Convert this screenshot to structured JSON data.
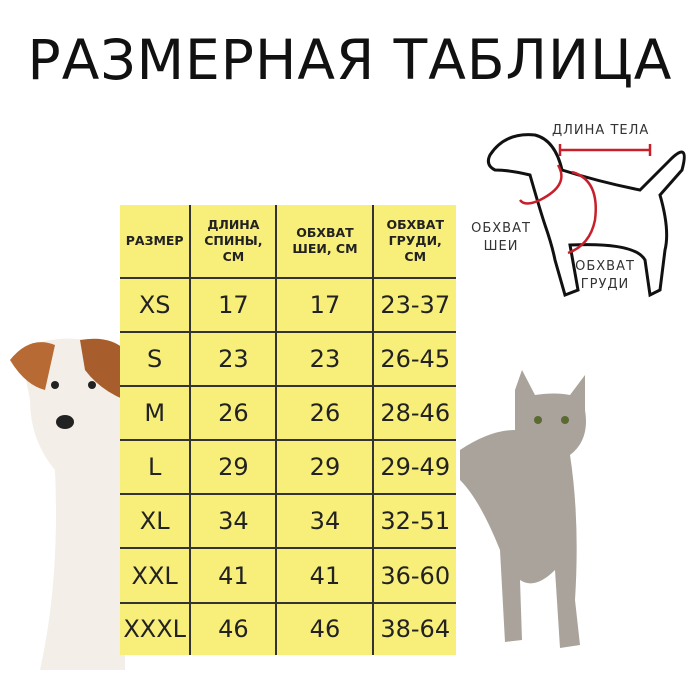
{
  "title": "РАЗМЕРНАЯ ТАБЛИЦА",
  "table": {
    "headers": [
      "РАЗМЕР",
      "ДЛИНА СПИНЫ, СМ",
      "ОБХВАТ ШЕИ, СМ",
      "ОБХВАТ ГРУДИ, СМ"
    ],
    "rows": [
      [
        "XS",
        "17",
        "17",
        "23-37"
      ],
      [
        "S",
        "23",
        "23",
        "26-45"
      ],
      [
        "M",
        "26",
        "26",
        "28-46"
      ],
      [
        "L",
        "29",
        "29",
        "29-49"
      ],
      [
        "XL",
        "34",
        "34",
        "32-51"
      ],
      [
        "XXL",
        "41",
        "41",
        "36-60"
      ],
      [
        "XXXL",
        "46",
        "46",
        "38-64"
      ]
    ]
  },
  "diagram": {
    "body_length": "ДЛИНА ТЕЛА",
    "neck_girth": "ОБХВАТ ШЕИ",
    "chest_girth": "ОБХВАТ ГРУДИ"
  },
  "colors": {
    "table_bg": "#f8ee7a",
    "measure_line": "#c8202a"
  }
}
